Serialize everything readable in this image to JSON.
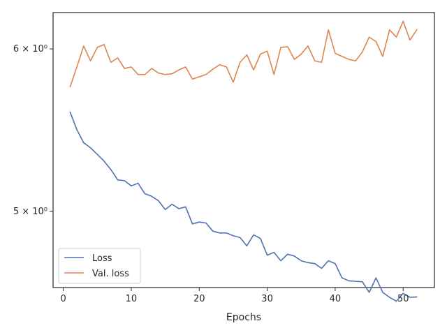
{
  "chart_data": {
    "type": "line",
    "xlabel": "Epochs",
    "ylabel": "",
    "yscale": "log",
    "xlim": [
      -1.5,
      54.6
    ],
    "ylim": [
      4.59,
      6.25
    ],
    "grid": false,
    "legend_position": "lower-left",
    "x_ticks": [
      0,
      10,
      20,
      30,
      40,
      50
    ],
    "x_tick_labels": [
      "0",
      "10",
      "20",
      "30",
      "40",
      "50"
    ],
    "y_ticks": [
      5,
      6
    ],
    "y_tick_labels": [
      "5 × 10⁰",
      "6 × 10⁰"
    ],
    "x": [
      1,
      2,
      3,
      4,
      5,
      6,
      7,
      8,
      9,
      10,
      11,
      12,
      13,
      14,
      15,
      16,
      17,
      18,
      19,
      20,
      21,
      22,
      23,
      24,
      25,
      26,
      27,
      28,
      29,
      30,
      31,
      32,
      33,
      34,
      35,
      36,
      37,
      38,
      39,
      40,
      41,
      42,
      43,
      44,
      45,
      46,
      47,
      48,
      49,
      50,
      51,
      52
    ],
    "series": [
      {
        "name": "Loss",
        "color": "#4c72b0",
        "values": [
          5.59,
          5.48,
          5.4,
          5.37,
          5.33,
          5.29,
          5.24,
          5.18,
          5.175,
          5.145,
          5.16,
          5.1,
          5.085,
          5.06,
          5.01,
          5.04,
          5.015,
          5.025,
          4.93,
          4.94,
          4.935,
          4.89,
          4.88,
          4.88,
          4.865,
          4.855,
          4.81,
          4.87,
          4.85,
          4.76,
          4.775,
          4.73,
          4.765,
          4.755,
          4.73,
          4.72,
          4.715,
          4.69,
          4.73,
          4.715,
          4.64,
          4.625,
          4.622,
          4.62,
          4.565,
          4.64,
          4.565,
          4.54,
          4.52,
          4.56,
          4.54,
          4.542
        ]
      },
      {
        "name": "Val. loss",
        "color": "#dd8452",
        "values": [
          5.75,
          5.88,
          6.02,
          5.92,
          6.01,
          6.03,
          5.91,
          5.94,
          5.87,
          5.88,
          5.83,
          5.83,
          5.87,
          5.84,
          5.83,
          5.835,
          5.86,
          5.88,
          5.8,
          5.815,
          5.83,
          5.865,
          5.895,
          5.88,
          5.78,
          5.91,
          5.96,
          5.86,
          5.965,
          5.985,
          5.83,
          6.01,
          6.015,
          5.93,
          5.965,
          6.02,
          5.92,
          5.91,
          6.13,
          5.97,
          5.95,
          5.93,
          5.92,
          5.98,
          6.08,
          6.05,
          5.95,
          6.13,
          6.08,
          6.19,
          6.06,
          6.13
        ]
      }
    ]
  }
}
